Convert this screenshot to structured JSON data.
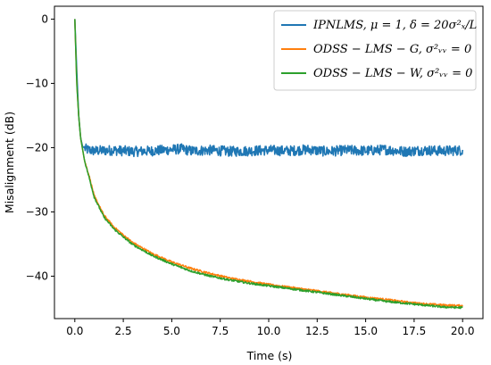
{
  "chart_data": {
    "type": "line",
    "xlabel": "Time (s)",
    "ylabel": "Misalignment (dB)",
    "xlim": [
      -1.05,
      21.05
    ],
    "ylim": [
      -46.6,
      2.0
    ],
    "xticks": [
      "0.0",
      "2.5",
      "5.0",
      "7.5",
      "10.0",
      "12.5",
      "15.0",
      "17.5",
      "20.0"
    ],
    "yticks": [
      "0",
      "−10",
      "−20",
      "−30",
      "−40"
    ],
    "grid": false,
    "legend_position": "top-right",
    "series": [
      {
        "name": "IPNLMS, μ = 1, δ = 20σ²ₓ/L",
        "color": "#1f77b4",
        "points": [
          [
            0,
            0
          ],
          [
            0.1,
            -8
          ],
          [
            0.2,
            -15
          ],
          [
            0.3,
            -18.5
          ],
          [
            0.4,
            -19.8
          ],
          [
            0.6,
            -20.3
          ],
          [
            1,
            -20.5
          ],
          [
            2,
            -20.4
          ],
          [
            3,
            -20.6
          ],
          [
            4,
            -20.5
          ],
          [
            5,
            -20.3
          ],
          [
            5.5,
            -20.2
          ],
          [
            6,
            -20.5
          ],
          [
            7,
            -20.4
          ],
          [
            8,
            -20.6
          ],
          [
            9,
            -20.5
          ],
          [
            10,
            -20.4
          ],
          [
            11,
            -20.5
          ],
          [
            12,
            -20.3
          ],
          [
            13,
            -20.6
          ],
          [
            14,
            -20.4
          ],
          [
            15,
            -20.5
          ],
          [
            16,
            -20.3
          ],
          [
            17,
            -20.6
          ],
          [
            18,
            -20.4
          ],
          [
            19,
            -20.5
          ],
          [
            20,
            -20.4
          ]
        ],
        "noise_amplitude_db": 0.8
      },
      {
        "name": "ODSS − LMS − G, σ²ᵥᵥ = 0",
        "color": "#ff7f0e",
        "points": [
          [
            0,
            0
          ],
          [
            0.1,
            -10
          ],
          [
            0.2,
            -15
          ],
          [
            0.3,
            -18.5
          ],
          [
            0.5,
            -22
          ],
          [
            0.75,
            -24.5
          ],
          [
            1,
            -27.5
          ],
          [
            1.5,
            -30.5
          ],
          [
            2,
            -32.3
          ],
          [
            2.5,
            -33.6
          ],
          [
            3,
            -34.8
          ],
          [
            4,
            -36.5
          ],
          [
            5,
            -37.8
          ],
          [
            6,
            -38.8
          ],
          [
            7,
            -39.6
          ],
          [
            8,
            -40.3
          ],
          [
            9,
            -40.8
          ],
          [
            10,
            -41.3
          ],
          [
            11,
            -41.7
          ],
          [
            12,
            -42.1
          ],
          [
            13,
            -42.5
          ],
          [
            14,
            -42.9
          ],
          [
            15,
            -43.3
          ],
          [
            16,
            -43.6
          ],
          [
            17,
            -44.0
          ],
          [
            18,
            -44.3
          ],
          [
            19,
            -44.5
          ],
          [
            20,
            -44.6
          ]
        ],
        "noise_amplitude_db": 0.15
      },
      {
        "name": "ODSS − LMS − W, σ²ᵥᵥ = 0",
        "color": "#2ca02c",
        "points": [
          [
            0,
            0
          ],
          [
            0.1,
            -10
          ],
          [
            0.2,
            -15
          ],
          [
            0.3,
            -18.5
          ],
          [
            0.5,
            -22
          ],
          [
            0.75,
            -24.8
          ],
          [
            1,
            -27.7
          ],
          [
            1.5,
            -30.8
          ],
          [
            2,
            -32.6
          ],
          [
            2.5,
            -33.9
          ],
          [
            3,
            -35.1
          ],
          [
            4,
            -36.8
          ],
          [
            5,
            -38.1
          ],
          [
            6,
            -39.2
          ],
          [
            7,
            -40.0
          ],
          [
            8,
            -40.6
          ],
          [
            9,
            -41.1
          ],
          [
            10,
            -41.5
          ],
          [
            11,
            -41.9
          ],
          [
            12,
            -42.3
          ],
          [
            13,
            -42.7
          ],
          [
            14,
            -43.1
          ],
          [
            15,
            -43.5
          ],
          [
            16,
            -43.9
          ],
          [
            17,
            -44.2
          ],
          [
            18,
            -44.5
          ],
          [
            19,
            -44.8
          ],
          [
            20,
            -44.9
          ]
        ],
        "noise_amplitude_db": 0.15
      }
    ]
  }
}
